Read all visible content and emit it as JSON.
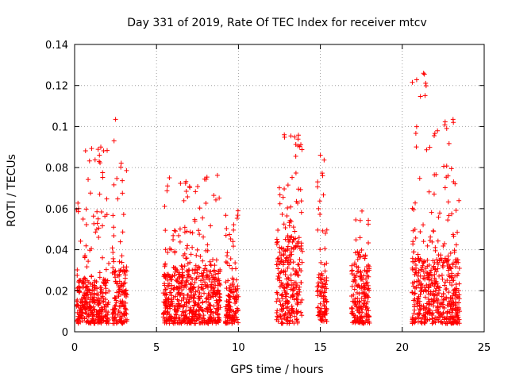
{
  "chart_data": {
    "type": "scatter",
    "title": "Day 331 of 2019, Rate Of TEC Index for receiver mtcv",
    "xlabel": "GPS time / hours",
    "ylabel": "ROTI / TECUs",
    "xlim": [
      0,
      25
    ],
    "ylim": [
      0,
      0.14
    ],
    "grid": true,
    "legend": "none",
    "marker": "+",
    "color": "#ff0000",
    "xticks": [
      {
        "value": 0,
        "label": "0"
      },
      {
        "value": 5,
        "label": "5"
      },
      {
        "value": 10,
        "label": "10"
      },
      {
        "value": 15,
        "label": "15"
      },
      {
        "value": 20,
        "label": "20"
      },
      {
        "value": 25,
        "label": "25"
      }
    ],
    "yticks": [
      {
        "value": 0,
        "label": "0"
      },
      {
        "value": 0.02,
        "label": "0.02"
      },
      {
        "value": 0.04,
        "label": "0.04"
      },
      {
        "value": 0.06,
        "label": "0.06"
      },
      {
        "value": 0.08,
        "label": "0.08"
      },
      {
        "value": 0.1,
        "label": "0.1"
      },
      {
        "value": 0.12,
        "label": "0.12"
      },
      {
        "value": 0.14,
        "label": "0.14"
      }
    ],
    "clusters": [
      {
        "x_range": [
          0.1,
          2.1
        ],
        "y_base": [
          0.004,
          0.025
        ],
        "y_peak": 0.09
      },
      {
        "x_range": [
          2.3,
          3.2
        ],
        "y_base": [
          0.004,
          0.03
        ],
        "y_peak": 0.104
      },
      {
        "x_range": [
          5.4,
          6.5
        ],
        "y_base": [
          0.004,
          0.028
        ],
        "y_peak": 0.081
      },
      {
        "x_range": [
          6.5,
          8.9
        ],
        "y_base": [
          0.004,
          0.03
        ],
        "y_peak": 0.081
      },
      {
        "x_range": [
          9.2,
          10.0
        ],
        "y_base": [
          0.004,
          0.025
        ],
        "y_peak": 0.06
      },
      {
        "x_range": [
          12.3,
          13.9
        ],
        "y_base": [
          0.004,
          0.045
        ],
        "y_peak": 0.096
      },
      {
        "x_range": [
          14.8,
          15.4
        ],
        "y_base": [
          0.005,
          0.03
        ],
        "y_peak": 0.086
      },
      {
        "x_range": [
          16.9,
          18.0
        ],
        "y_base": [
          0.004,
          0.03
        ],
        "y_peak": 0.06
      },
      {
        "x_range": [
          20.6,
          21.6
        ],
        "y_base": [
          0.004,
          0.035
        ],
        "y_peak": 0.126
      },
      {
        "x_range": [
          21.6,
          23.5
        ],
        "y_base": [
          0.004,
          0.035
        ],
        "y_peak": 0.104
      }
    ],
    "notable_points": [
      {
        "x": 21.3,
        "y": 0.126
      },
      {
        "x": 21.35,
        "y": 0.1255
      },
      {
        "x": 2.5,
        "y": 0.1035
      },
      {
        "x": 23.1,
        "y": 0.1035
      },
      {
        "x": 23.12,
        "y": 0.102
      },
      {
        "x": 12.8,
        "y": 0.096
      },
      {
        "x": 1.6,
        "y": 0.09
      },
      {
        "x": 15.0,
        "y": 0.086
      },
      {
        "x": 1.5,
        "y": 0.083
      },
      {
        "x": 23.0,
        "y": 0.0795
      },
      {
        "x": 20.7,
        "y": 0.0595
      },
      {
        "x": 20.65,
        "y": 0.044
      },
      {
        "x": 13.5,
        "y": 0.0855
      }
    ]
  }
}
